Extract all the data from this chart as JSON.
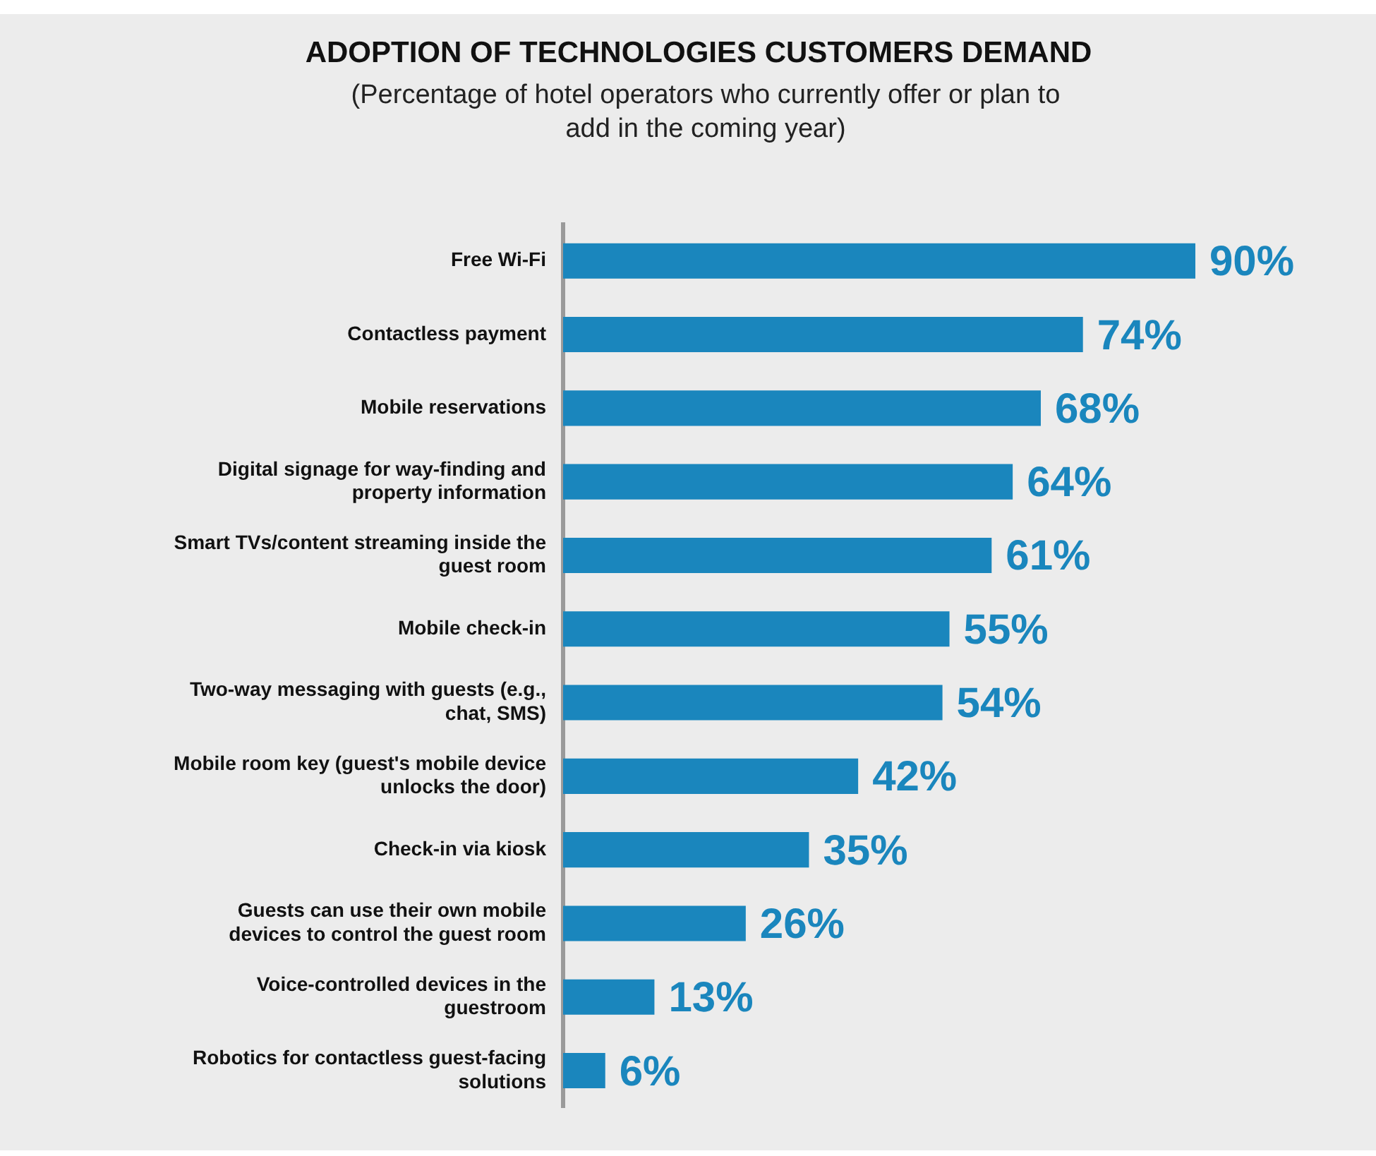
{
  "chart_data": {
    "type": "bar",
    "orientation": "horizontal",
    "title": "ADOPTION OF TECHNOLOGIES CUSTOMERS DEMAND",
    "subtitle": "(Percentage of hotel operators who currently offer or plan to add in the coming year)",
    "categories": [
      "Free Wi-Fi",
      "Contactless payment",
      "Mobile reservations",
      "Digital signage for way-finding and property information",
      "Smart TVs/content streaming inside the guest room",
      "Mobile check-in",
      "Two-way messaging with guests (e.g., chat, SMS)",
      "Mobile room key (guest's mobile device unlocks the door)",
      "Check-in via kiosk",
      "Guests can use their own mobile devices to control the guest room",
      "Voice-controlled devices in the guestroom",
      "Robotics for contactless guest-facing solutions"
    ],
    "values": [
      90,
      74,
      68,
      64,
      61,
      55,
      54,
      42,
      35,
      26,
      13,
      6
    ],
    "value_labels": [
      "90%",
      "74%",
      "68%",
      "64%",
      "61%",
      "55%",
      "54%",
      "42%",
      "35%",
      "26%",
      "13%",
      "6%"
    ],
    "color": "#1a86bd",
    "legend": false,
    "tick_labels": "y"
  }
}
